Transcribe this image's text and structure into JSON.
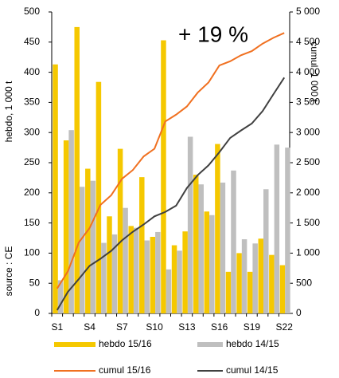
{
  "chart_data": {
    "type": "bar",
    "annotation": "+ 19 %",
    "ylabel": "hebdo, 1 000 t",
    "y2label": "cumul. 1 000 t",
    "source": "source : CE",
    "categories": [
      "S1",
      null,
      null,
      "S4",
      null,
      null,
      "S7",
      null,
      null,
      "S10",
      null,
      null,
      "S13",
      null,
      null,
      "S16",
      null,
      null,
      "S19",
      null,
      null,
      "S22"
    ],
    "series": [
      {
        "name": "hebdo 15/16",
        "type": "bar",
        "color": "#f5c800",
        "values": [
          413,
          287,
          475,
          240,
          384,
          161,
          273,
          145,
          226,
          127,
          453,
          113,
          136,
          230,
          169,
          281,
          69,
          100,
          69,
          124,
          97,
          80
        ]
      },
      {
        "name": "hebdo 14/15",
        "type": "bar",
        "color": "#bfbfbf",
        "values": [
          55,
          304,
          210,
          220,
          117,
          131,
          175,
          142,
          121,
          135,
          73,
          104,
          293,
          214,
          163,
          217,
          237,
          123,
          116,
          206,
          280,
          275
        ]
      },
      {
        "name": "cumul 15/16",
        "type": "line",
        "axis": "y2",
        "color": "#f07020",
        "values": [
          413,
          700,
          1175,
          1415,
          1799,
          1960,
          2233,
          2378,
          2604,
          2731,
          3184,
          3297,
          3433,
          3663,
          3832,
          4113,
          4182,
          4282,
          4351,
          4475,
          4572,
          4652
        ]
      },
      {
        "name": "cumul 14/15",
        "type": "line",
        "axis": "y2",
        "color": "#404040",
        "values": [
          55,
          359,
          569,
          789,
          906,
          1037,
          1212,
          1354,
          1475,
          1610,
          1683,
          1787,
          2080,
          2294,
          2457,
          2674,
          2911,
          3034,
          3150,
          3356,
          3636,
          3911
        ]
      }
    ],
    "ylim": [
      0,
      500
    ],
    "yticks": [
      0,
      50,
      100,
      150,
      200,
      250,
      300,
      350,
      400,
      450,
      500
    ],
    "y2lim": [
      0,
      5000
    ],
    "y2ticks": [
      0,
      500,
      {
        "value": 1000,
        "label": "1 000"
      },
      {
        "value": 1500,
        "label": "1 500"
      },
      {
        "value": 2000,
        "label": "2 000"
      },
      {
        "value": 2500,
        "label": "2 500"
      },
      {
        "value": 3000,
        "label": "3 000"
      },
      {
        "value": 3500,
        "label": "3 500"
      },
      {
        "value": 4000,
        "label": "4 000"
      },
      {
        "value": 4500,
        "label": "4 500"
      },
      {
        "value": 5000,
        "label": "5 000"
      }
    ],
    "annotation_color": "#ff0000",
    "grid": false,
    "legend": "bottom"
  }
}
